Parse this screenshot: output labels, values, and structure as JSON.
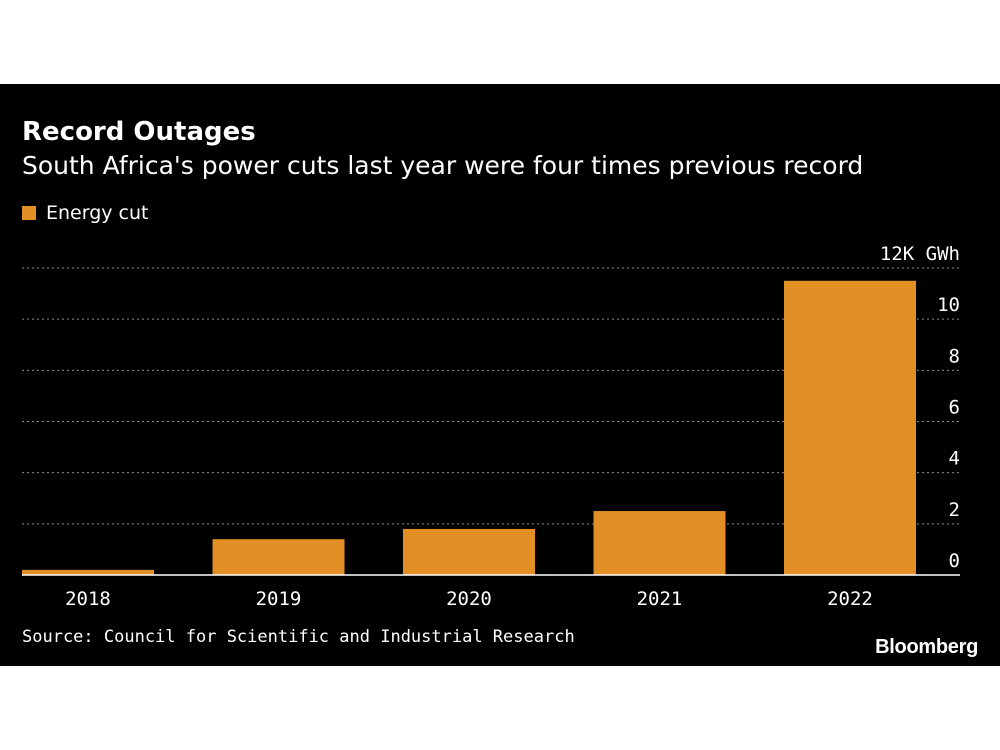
{
  "title": "Record Outages",
  "subtitle": "South Africa's power cuts last year were four times previous record",
  "source": "Source: Council for Scientific and Industrial Research",
  "brand": "Bloomberg",
  "colors": {
    "background": "#000000",
    "bar": "#e28f26",
    "text": "#ffffff",
    "grid": "#8a8a8a"
  },
  "chart_data": {
    "type": "bar",
    "categories": [
      "2018",
      "2019",
      "2020",
      "2021",
      "2022"
    ],
    "series": [
      {
        "name": "Energy cut",
        "values": [
          0.2,
          1.4,
          1.8,
          2.5,
          11.5
        ]
      }
    ],
    "ylim": [
      0,
      12
    ],
    "yticks": [
      0,
      2,
      4,
      6,
      8,
      10,
      12
    ],
    "ytick_labels": [
      "0",
      "2",
      "4",
      "6",
      "8",
      "10",
      "12K GWh"
    ],
    "legend_position": "top-left",
    "y_axis_position": "right",
    "grid": true
  }
}
